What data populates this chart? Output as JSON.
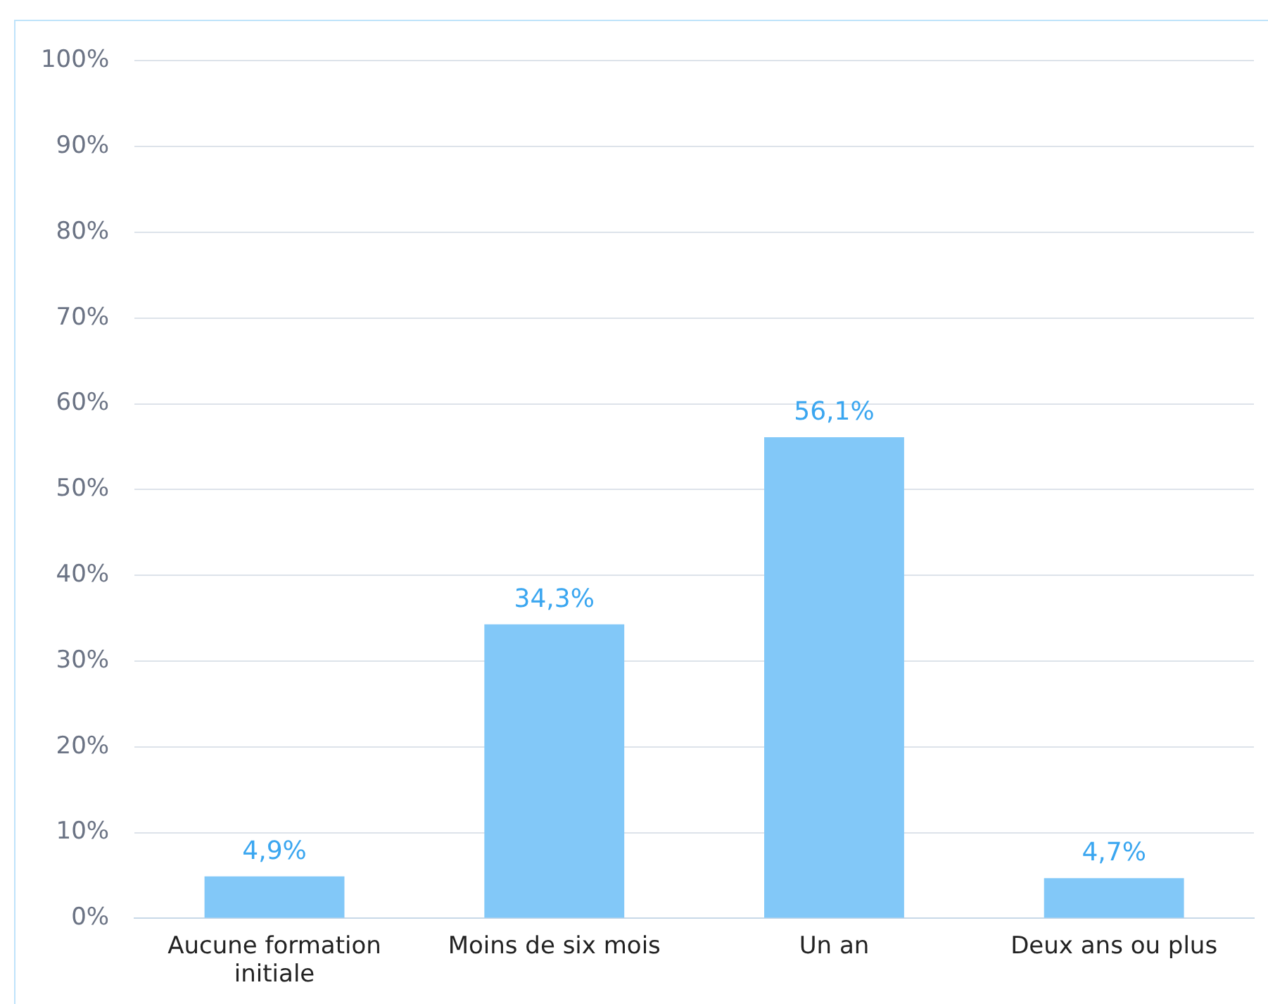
{
  "chart_data": {
    "type": "bar",
    "categories": [
      "Aucune formation initiale",
      "Moins de six mois",
      "Un an",
      "Deux ans ou plus"
    ],
    "values": [
      4.9,
      34.3,
      56.1,
      4.7
    ],
    "color": "#82c8f8",
    "value_labels": [
      "4,9%",
      "34,3%",
      "56,1%",
      "4,7%"
    ],
    "ylim": [
      0,
      100
    ],
    "yticks": [
      {
        "value": 0,
        "label": "0%"
      },
      {
        "value": 10,
        "label": "10%"
      },
      {
        "value": 20,
        "label": "20%"
      },
      {
        "value": 30,
        "label": "30%"
      },
      {
        "value": 40,
        "label": "40%"
      },
      {
        "value": 50,
        "label": "50%"
      },
      {
        "value": 60,
        "label": "60%"
      },
      {
        "value": 70,
        "label": "70%"
      },
      {
        "value": 80,
        "label": "80%"
      },
      {
        "value": 90,
        "label": "90%"
      },
      {
        "value": 100,
        "label": "100%"
      }
    ],
    "grid": "y"
  }
}
